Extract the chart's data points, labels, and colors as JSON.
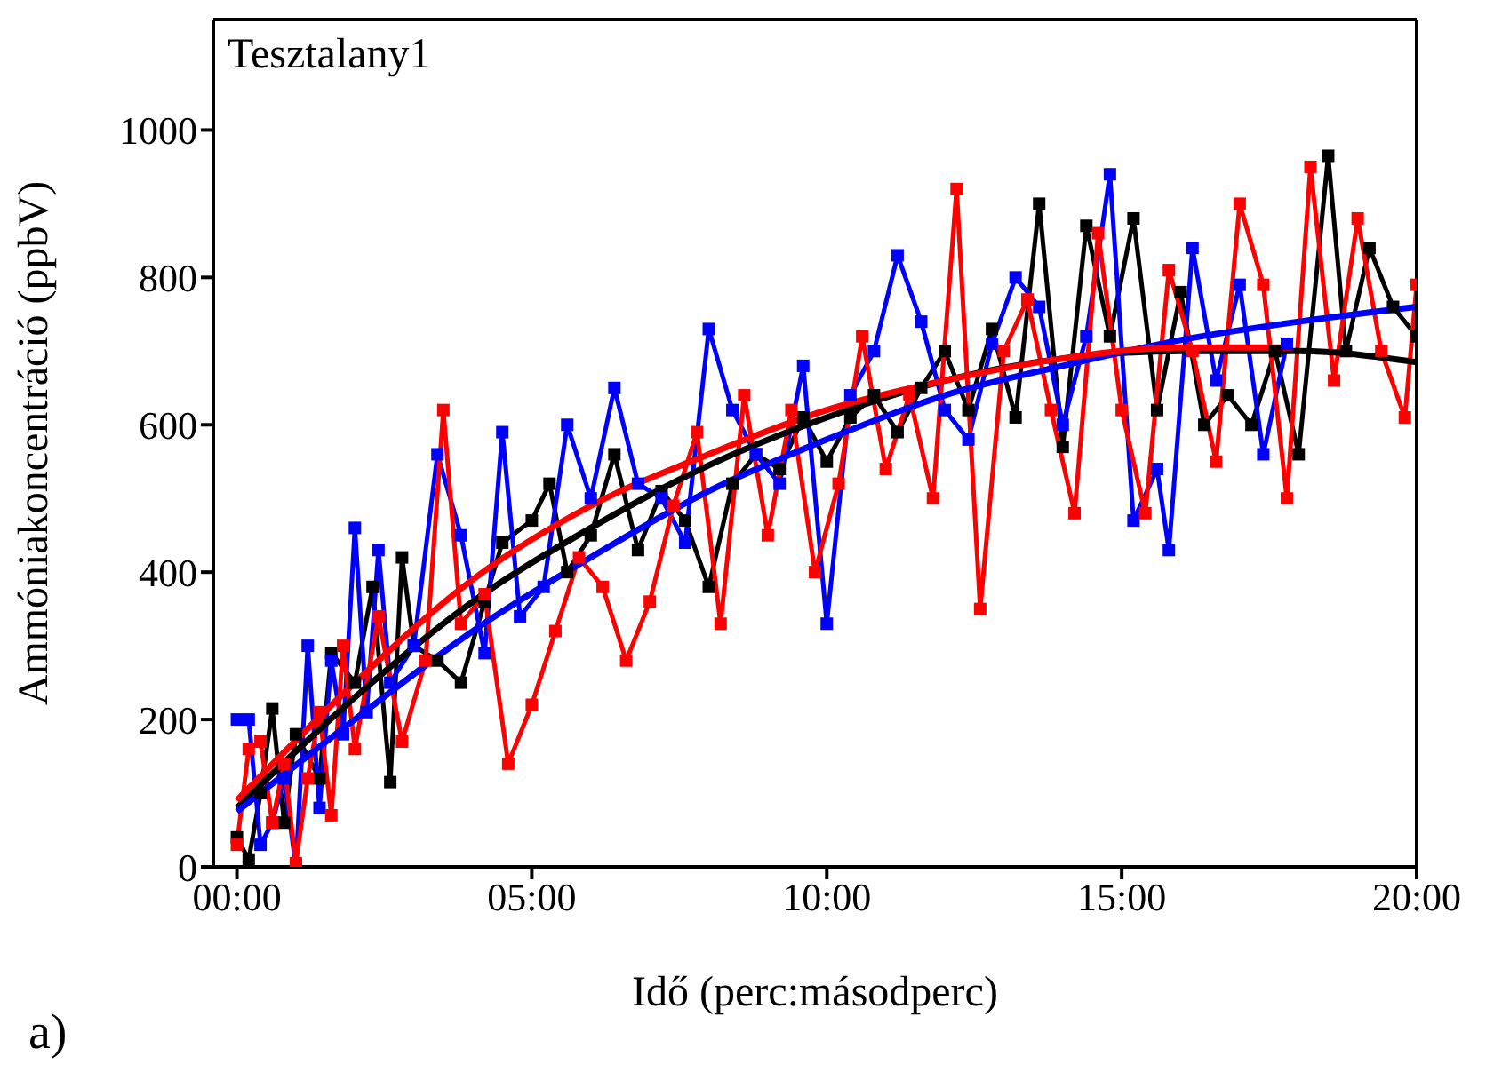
{
  "chart_data": {
    "type": "line",
    "title": "Tesztalany1",
    "xlabel": "Idő (perc:másodperc)",
    "ylabel": "Ammóniakoncentráció (ppbV)",
    "annotations": [
      "a)"
    ],
    "xlim": [
      -0.4,
      20
    ],
    "xticks": [
      {
        "value": 0,
        "label": "00:00"
      },
      {
        "value": 5,
        "label": "05:00"
      },
      {
        "value": 10,
        "label": "10:00"
      },
      {
        "value": 15,
        "label": "15:00"
      },
      {
        "value": 20,
        "label": "20:00"
      }
    ],
    "ylim": [
      0,
      1150
    ],
    "yticks": [
      0,
      200,
      400,
      600,
      800,
      1000
    ],
    "marker": "square",
    "line_style": "solid",
    "series": [
      {
        "color": "#000000",
        "x": [
          0,
          0.2,
          0.4,
          0.6,
          0.8,
          1,
          1.4,
          1.6,
          2,
          2.3,
          2.6,
          2.8,
          3,
          3.4,
          3.8,
          4.2,
          4.5,
          5,
          5.3,
          5.6,
          6,
          6.4,
          6.8,
          7.2,
          7.6,
          8,
          8.4,
          8.8,
          9.2,
          9.6,
          10,
          10.4,
          10.8,
          11.2,
          11.6,
          12,
          12.4,
          12.8,
          13.2,
          13.6,
          14,
          14.4,
          14.8,
          15.2,
          15.6,
          16,
          16.4,
          16.8,
          17.2,
          17.6,
          18,
          18.5,
          18.8,
          19.2,
          19.6,
          20
        ],
        "values": [
          40,
          10,
          100,
          215,
          60,
          180,
          120,
          290,
          250,
          380,
          115,
          420,
          300,
          280,
          250,
          360,
          440,
          470,
          520,
          400,
          450,
          560,
          430,
          510,
          470,
          380,
          520,
          560,
          540,
          610,
          550,
          610,
          640,
          590,
          650,
          700,
          620,
          730,
          610,
          900,
          570,
          870,
          720,
          880,
          620,
          780,
          600,
          640,
          600,
          700,
          560,
          965,
          700,
          840,
          760,
          720
        ]
      },
      {
        "color": "#0000ff",
        "x": [
          0,
          0.2,
          0.4,
          0.6,
          0.8,
          1,
          1.2,
          1.4,
          1.6,
          1.8,
          2,
          2.2,
          2.4,
          2.6,
          3,
          3.4,
          3.8,
          4.2,
          4.5,
          4.8,
          5.2,
          5.6,
          6,
          6.4,
          6.8,
          7.2,
          7.6,
          8,
          8.4,
          8.8,
          9.2,
          9.6,
          10,
          10.4,
          10.8,
          11.2,
          11.6,
          12,
          12.4,
          12.8,
          13.2,
          13.6,
          14,
          14.4,
          14.8,
          15.2,
          15.6,
          15.8,
          16.2,
          16.6,
          17,
          17.4,
          17.8
        ],
        "values": [
          200,
          200,
          30,
          60,
          120,
          0,
          300,
          80,
          280,
          180,
          460,
          210,
          430,
          250,
          300,
          560,
          450,
          290,
          590,
          340,
          380,
          600,
          500,
          650,
          520,
          500,
          440,
          730,
          620,
          560,
          520,
          680,
          330,
          640,
          700,
          830,
          740,
          620,
          580,
          710,
          800,
          760,
          600,
          720,
          940,
          470,
          540,
          430,
          840,
          660,
          790,
          560,
          710
        ]
      },
      {
        "color": "#ff0000",
        "x": [
          0,
          0.2,
          0.4,
          0.6,
          0.8,
          1,
          1.2,
          1.4,
          1.6,
          1.8,
          2,
          2.4,
          2.8,
          3.2,
          3.5,
          3.8,
          4.2,
          4.6,
          5,
          5.4,
          5.8,
          6.2,
          6.6,
          7,
          7.4,
          7.8,
          8.2,
          8.6,
          9,
          9.4,
          9.8,
          10.2,
          10.6,
          11,
          11.4,
          11.8,
          12.2,
          12.6,
          13,
          13.4,
          13.8,
          14.2,
          14.6,
          15,
          15.4,
          15.8,
          16.2,
          16.6,
          17,
          17.4,
          17.8,
          18.2,
          18.6,
          19,
          19.4,
          19.8,
          20
        ],
        "values": [
          30,
          160,
          170,
          60,
          140,
          5,
          120,
          210,
          70,
          300,
          160,
          340,
          170,
          280,
          620,
          330,
          370,
          140,
          220,
          320,
          420,
          380,
          280,
          360,
          490,
          590,
          330,
          640,
          450,
          620,
          400,
          520,
          720,
          540,
          640,
          500,
          920,
          350,
          700,
          770,
          620,
          480,
          860,
          620,
          480,
          810,
          700,
          550,
          900,
          790,
          500,
          950,
          660,
          880,
          700,
          610,
          790
        ]
      },
      {
        "type": "line",
        "marker": "none",
        "color": "#000000",
        "x": [
          0,
          2,
          4,
          6,
          8,
          10,
          12,
          14,
          16,
          18,
          20
        ],
        "values": [
          80,
          230,
          360,
          460,
          545,
          610,
          660,
          690,
          700,
          700,
          685
        ]
      },
      {
        "type": "line",
        "marker": "none",
        "color": "#0000ff",
        "x": [
          0,
          2,
          4,
          6,
          8,
          10,
          12,
          14,
          16,
          18,
          20
        ],
        "values": [
          75,
          200,
          320,
          420,
          510,
          580,
          640,
          680,
          715,
          740,
          760
        ]
      },
      {
        "type": "line",
        "marker": "none",
        "color": "#ff0000",
        "x": [
          0,
          2,
          4,
          6,
          8,
          10,
          12,
          14,
          16,
          17.9
        ],
        "values": [
          90,
          250,
          390,
          490,
          560,
          620,
          660,
          690,
          705,
          705
        ]
      }
    ]
  }
}
